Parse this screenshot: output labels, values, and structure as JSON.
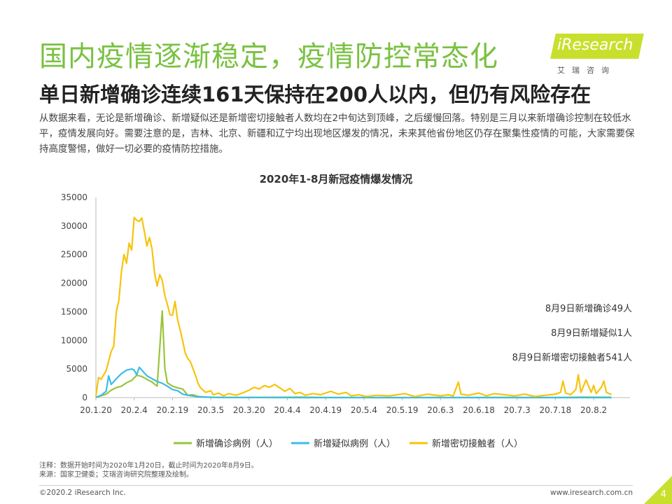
{
  "header": {
    "title": "国内疫情逐渐稳定，疫情防控常态化",
    "subtitle": "单日新增确诊连续161天保持在200人以内，但仍有风险存在",
    "body": "从数据来看，无论是新增确诊、新增疑似还是新增密切接触者人数均在2中旬达到顶峰，之后缓慢回落。特别是三月以来新增确诊控制在较低水平，疫情发展向好。需要注意的是，吉林、北京、新疆和辽宁均出现地区爆发的情况，未来其他省份地区仍存在聚集性疫情的可能，大家需要保持高度警惕，做好一切必要的疫情防控措施。"
  },
  "logo": {
    "name": "iResearch",
    "sub": "艾瑞咨询"
  },
  "chart_data": {
    "type": "line",
    "title": "2020年1-8月新冠疫情爆发情况",
    "xlabel": "",
    "ylabel": "",
    "ylim": [
      0,
      35000
    ],
    "yticks": [
      0,
      5000,
      10000,
      15000,
      20000,
      25000,
      30000,
      35000
    ],
    "xticks": [
      "20.1.20",
      "20.2.4",
      "20.2.19",
      "20.3.5",
      "20.3.20",
      "20.4.4",
      "20.4.19",
      "20.5.4",
      "20.5.19",
      "20.6.3",
      "20.6.18",
      "20.7.3",
      "20.7.18",
      "20.8.2"
    ],
    "x_start": "2020-01-20",
    "x_end": "2020-08-09",
    "grid": false,
    "legend_position": "bottom",
    "series": [
      {
        "name": "新增确诊病例（人）",
        "color": "#9ac43a",
        "points": [
          [
            0,
            77
          ],
          [
            2,
            300
          ],
          [
            4,
            600
          ],
          [
            6,
            1300
          ],
          [
            8,
            1750
          ],
          [
            10,
            2000
          ],
          [
            12,
            2600
          ],
          [
            14,
            3000
          ],
          [
            16,
            3900
          ],
          [
            18,
            3700
          ],
          [
            20,
            3200
          ],
          [
            22,
            2700
          ],
          [
            24,
            2000
          ],
          [
            26,
            15152
          ],
          [
            27,
            5090
          ],
          [
            28,
            2600
          ],
          [
            30,
            2000
          ],
          [
            32,
            1700
          ],
          [
            34,
            1500
          ],
          [
            36,
            400
          ],
          [
            38,
            500
          ],
          [
            40,
            200
          ],
          [
            42,
            120
          ],
          [
            45,
            50
          ],
          [
            50,
            30
          ],
          [
            60,
            40
          ],
          [
            70,
            50
          ],
          [
            80,
            90
          ],
          [
            90,
            20
          ],
          [
            100,
            10
          ],
          [
            120,
            5
          ],
          [
            140,
            20
          ],
          [
            150,
            30
          ],
          [
            160,
            40
          ],
          [
            170,
            10
          ],
          [
            180,
            20
          ],
          [
            190,
            80
          ],
          [
            200,
            60
          ],
          [
            202,
            49
          ]
        ]
      },
      {
        "name": "新增疑似病例（人）",
        "color": "#3bbde5",
        "points": [
          [
            0,
            30
          ],
          [
            2,
            400
          ],
          [
            4,
            1100
          ],
          [
            5,
            3800
          ],
          [
            6,
            2300
          ],
          [
            8,
            3300
          ],
          [
            10,
            4200
          ],
          [
            12,
            4800
          ],
          [
            14,
            5000
          ],
          [
            15,
            4800
          ],
          [
            16,
            4000
          ],
          [
            17,
            5300
          ],
          [
            18,
            4800
          ],
          [
            20,
            3800
          ],
          [
            22,
            3300
          ],
          [
            24,
            2800
          ],
          [
            26,
            2500
          ],
          [
            28,
            2000
          ],
          [
            30,
            1400
          ],
          [
            32,
            1200
          ],
          [
            34,
            600
          ],
          [
            36,
            400
          ],
          [
            40,
            150
          ],
          [
            45,
            60
          ],
          [
            50,
            20
          ],
          [
            60,
            10
          ],
          [
            80,
            5
          ],
          [
            100,
            3
          ],
          [
            150,
            2
          ],
          [
            202,
            1
          ]
        ]
      },
      {
        "name": "新增密切接触者（人）",
        "color": "#f6c40d",
        "points": [
          [
            0,
            200
          ],
          [
            1,
            3500
          ],
          [
            2,
            3200
          ],
          [
            4,
            4700
          ],
          [
            6,
            8100
          ],
          [
            7,
            9000
          ],
          [
            8,
            15000
          ],
          [
            9,
            17000
          ],
          [
            10,
            22000
          ],
          [
            11,
            25000
          ],
          [
            12,
            23500
          ],
          [
            13,
            27000
          ],
          [
            14,
            25800
          ],
          [
            15,
            31500
          ],
          [
            16,
            31000
          ],
          [
            17,
            30800
          ],
          [
            18,
            31400
          ],
          [
            19,
            29000
          ],
          [
            20,
            26500
          ],
          [
            21,
            28000
          ],
          [
            22,
            26000
          ],
          [
            23,
            21700
          ],
          [
            24,
            19500
          ],
          [
            25,
            21500
          ],
          [
            26,
            20500
          ],
          [
            27,
            17800
          ],
          [
            28,
            16300
          ],
          [
            29,
            14500
          ],
          [
            30,
            14400
          ],
          [
            31,
            16800
          ],
          [
            32,
            13600
          ],
          [
            33,
            11900
          ],
          [
            34,
            9900
          ],
          [
            35,
            7800
          ],
          [
            36,
            6800
          ],
          [
            37,
            6300
          ],
          [
            38,
            5100
          ],
          [
            39,
            3900
          ],
          [
            40,
            2500
          ],
          [
            41,
            1700
          ],
          [
            42,
            1300
          ],
          [
            43,
            900
          ],
          [
            45,
            1200
          ],
          [
            46,
            500
          ],
          [
            48,
            800
          ],
          [
            50,
            300
          ],
          [
            52,
            700
          ],
          [
            55,
            400
          ],
          [
            58,
            900
          ],
          [
            60,
            1300
          ],
          [
            62,
            1800
          ],
          [
            64,
            1500
          ],
          [
            66,
            2100
          ],
          [
            68,
            1800
          ],
          [
            70,
            2300
          ],
          [
            72,
            1700
          ],
          [
            74,
            1100
          ],
          [
            76,
            1600
          ],
          [
            78,
            700
          ],
          [
            80,
            900
          ],
          [
            82,
            400
          ],
          [
            85,
            700
          ],
          [
            88,
            500
          ],
          [
            90,
            800
          ],
          [
            92,
            1100
          ],
          [
            95,
            600
          ],
          [
            98,
            900
          ],
          [
            100,
            300
          ],
          [
            103,
            500
          ],
          [
            106,
            200
          ],
          [
            110,
            400
          ],
          [
            115,
            300
          ],
          [
            118,
            500
          ],
          [
            121,
            700
          ],
          [
            125,
            200
          ],
          [
            130,
            600
          ],
          [
            135,
            300
          ],
          [
            138,
            500
          ],
          [
            140,
            300
          ],
          [
            142,
            2700
          ],
          [
            143,
            600
          ],
          [
            146,
            400
          ],
          [
            150,
            800
          ],
          [
            153,
            300
          ],
          [
            156,
            700
          ],
          [
            160,
            500
          ],
          [
            164,
            300
          ],
          [
            168,
            600
          ],
          [
            172,
            200
          ],
          [
            176,
            400
          ],
          [
            180,
            600
          ],
          [
            182,
            900
          ],
          [
            183,
            2900
          ],
          [
            184,
            800
          ],
          [
            186,
            500
          ],
          [
            188,
            1400
          ],
          [
            189,
            4000
          ],
          [
            190,
            900
          ],
          [
            192,
            3100
          ],
          [
            194,
            900
          ],
          [
            195,
            2100
          ],
          [
            196,
            700
          ],
          [
            198,
            1800
          ],
          [
            199,
            2900
          ],
          [
            200,
            900
          ],
          [
            202,
            541
          ]
        ]
      }
    ],
    "annotations": [
      "8月9日新增确诊49人",
      "8月9日新增疑似1人",
      "8月9日新增密切接触者541人"
    ]
  },
  "footnote": {
    "note": "注释：数据开始时间为2020年1月20日，截止时间为2020年8月9日。",
    "source": "来源：国家卫健委；艾瑞咨询研究院整理及绘制。"
  },
  "footer": {
    "copyright": "©2020.2 iResearch Inc.",
    "url": "www.iresearch.com.cn",
    "page": "4"
  }
}
